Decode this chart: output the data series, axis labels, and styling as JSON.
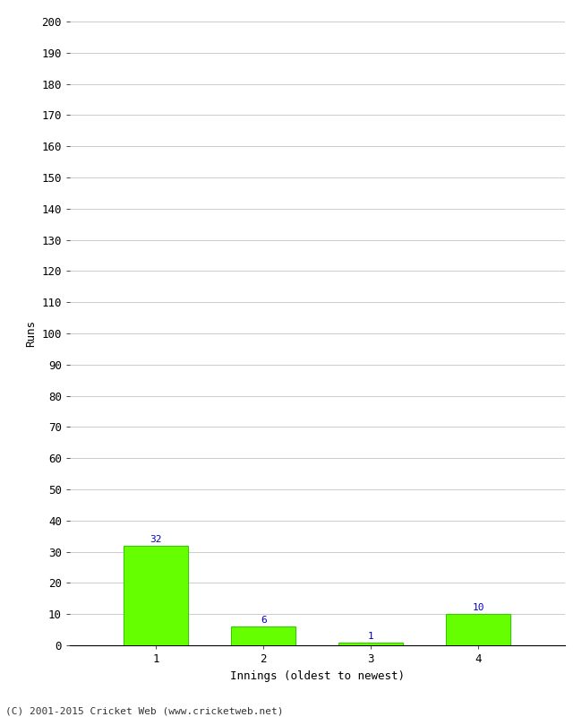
{
  "categories": [
    "1",
    "2",
    "3",
    "4"
  ],
  "values": [
    32,
    6,
    1,
    10
  ],
  "bar_color": "#66ff00",
  "bar_edge_color": "#33cc00",
  "xlabel": "Innings (oldest to newest)",
  "ylabel": "Runs",
  "ylim": [
    0,
    200
  ],
  "yticks": [
    0,
    10,
    20,
    30,
    40,
    50,
    60,
    70,
    80,
    90,
    100,
    110,
    120,
    130,
    140,
    150,
    160,
    170,
    180,
    190,
    200
  ],
  "label_color": "#0000cc",
  "label_fontsize": 8,
  "axis_fontsize": 9,
  "tick_fontsize": 9,
  "footer_text": "(C) 2001-2015 Cricket Web (www.cricketweb.net)",
  "footer_fontsize": 8,
  "background_color": "#ffffff",
  "grid_color": "#cccccc",
  "bar_width": 0.6,
  "figsize": [
    6.5,
    8.0
  ],
  "dpi": 100
}
